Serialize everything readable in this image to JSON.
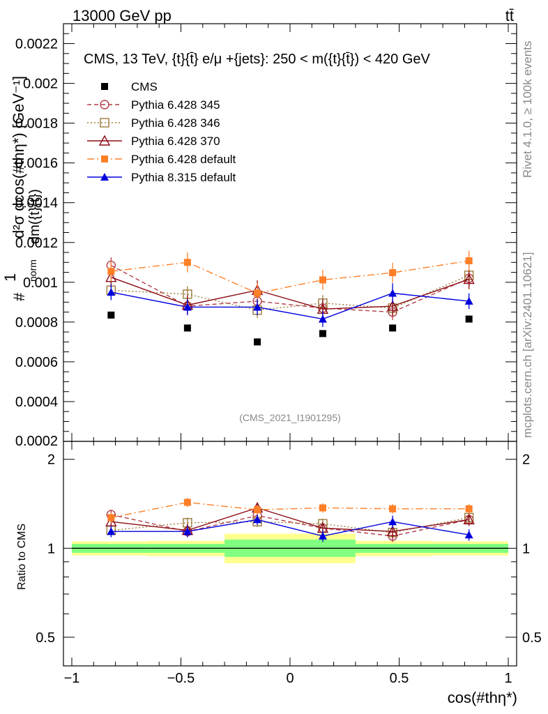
{
  "header": {
    "energy_label": "13000 GeV pp",
    "process_label": "tt̄"
  },
  "side_labels": {
    "rivet": "Rivet 4.1.0, ≥ 100k events",
    "mcplots": "mcplots.cern.ch [arXiv:2401.10621]"
  },
  "colors": {
    "cms": "#000000",
    "p345": "#b03a48",
    "p346": "#9c7b3a",
    "p370": "#8b0a14",
    "p6def": "#ff7f27",
    "p8def": "#0000dd",
    "band_inner": "#80ff80",
    "band_outer": "#ffff90"
  },
  "chart_data": [
    {
      "type": "line",
      "title": "CMS, 13 TeV, {t}{t̄} e/μ +{jets}: 250 < m({t}{t̄}) < 420 GeV",
      "watermark": "(CMS_2021_I1901295)",
      "ylabel": "#frac{1}{σ_norm} d²σ/dm({t}{t̄}) dcos(#thη*) [GeV⁻¹]",
      "ylabel_parts": {
        "frac_num": "1",
        "frac_den": "#",
        "sigma_sub": "norm",
        "main": "d²σ dcos(#thη*) [GeV⁻¹]",
        "denom": "dm({t}{t̄})"
      },
      "xlim": [
        -1.0,
        1.0
      ],
      "ylim": [
        0.0002,
        0.0023
      ],
      "yticks": [
        "0.0004",
        "0.0006",
        "0.0008",
        "0.001",
        "0.0012",
        "0.0014",
        "0.0016",
        "0.0018",
        "0.002",
        "0.0022"
      ],
      "ytick_values": [
        0.0004,
        0.0006,
        0.0008,
        0.001,
        0.0012,
        0.0014,
        0.0016,
        0.0018,
        0.002,
        0.0022
      ],
      "bottom_tick_label": "0.0002",
      "x": [
        -0.82,
        -0.47,
        -0.15,
        0.15,
        0.47,
        0.82
      ],
      "bin_edges": [
        -1.0,
        -0.65,
        -0.3,
        0.0,
        0.3,
        0.65,
        1.0
      ],
      "series": [
        {
          "name": "CMS",
          "key": "cms",
          "style": "data",
          "values": [
            0.000835,
            0.00077,
            0.0007,
            0.000742,
            0.00077,
            0.000815
          ],
          "errors": [
            0,
            0,
            0,
            0,
            0,
            0
          ]
        },
        {
          "name": "Pythia 6.428 345",
          "key": "p345",
          "style": "dashed",
          "marker": "open-circle",
          "values": [
            0.001085,
            0.00088,
            0.000905,
            0.00087,
            0.00085,
            0.00102
          ],
          "errors": [
            4e-05,
            4e-05,
            4e-05,
            4e-05,
            4e-05,
            4e-05
          ]
        },
        {
          "name": "Pythia 6.428 346",
          "key": "p346",
          "style": "dotted",
          "marker": "open-square",
          "values": [
            0.00096,
            0.00094,
            0.00086,
            0.000895,
            0.00087,
            0.001035
          ],
          "errors": [
            4e-05,
            4e-05,
            4e-05,
            4e-05,
            4e-05,
            4e-05
          ]
        },
        {
          "name": "Pythia 6.428 370",
          "key": "p370",
          "style": "solid",
          "marker": "open-triangle",
          "values": [
            0.001025,
            0.000885,
            0.00096,
            0.000865,
            0.00088,
            0.001015
          ],
          "errors": [
            5e-05,
            5e-05,
            5e-05,
            5e-05,
            5e-05,
            5e-05
          ]
        },
        {
          "name": "Pythia 6.428 default",
          "key": "p6def",
          "style": "dashdot",
          "marker": "filled-square",
          "values": [
            0.001055,
            0.0011,
            0.000945,
            0.001012,
            0.001048,
            0.001108
          ],
          "errors": [
            5e-05,
            5e-05,
            5e-05,
            5e-05,
            5e-05,
            5e-05
          ]
        },
        {
          "name": "Pythia 8.315 default",
          "key": "p8def",
          "style": "solid",
          "marker": "filled-triangle",
          "values": [
            0.00095,
            0.000875,
            0.000875,
            0.000815,
            0.000945,
            0.000905
          ],
          "errors": [
            4e-05,
            4e-05,
            4e-05,
            4e-05,
            5e-05,
            4e-05
          ]
        }
      ]
    },
    {
      "type": "line",
      "ylabel": "Ratio to CMS",
      "xlabel": "cos(#thη*)",
      "xlim": [
        -1.0,
        1.0
      ],
      "ylim": [
        0.4,
        2.3
      ],
      "yscale": "log",
      "yticks": [
        "0.5",
        "1",
        "2"
      ],
      "ytick_values": [
        0.5,
        1,
        2
      ],
      "xticks": [
        "−1",
        "−0.5",
        "0",
        "0.5",
        "1"
      ],
      "xtick_values": [
        -1,
        -0.5,
        0,
        0.5,
        1
      ],
      "x": [
        -0.82,
        -0.47,
        -0.15,
        0.15,
        0.47,
        0.82
      ],
      "bin_edges": [
        -1.0,
        -0.65,
        -0.3,
        0.0,
        0.3,
        0.65,
        1.0
      ],
      "band_inner": [
        [
          0.965,
          1.035
        ],
        [
          0.965,
          1.035
        ],
        [
          0.935,
          1.07
        ],
        [
          0.935,
          1.07
        ],
        [
          0.965,
          1.035
        ],
        [
          0.965,
          1.035
        ]
      ],
      "band_outer": [
        [
          0.945,
          1.055
        ],
        [
          0.94,
          1.06
        ],
        [
          0.89,
          1.12
        ],
        [
          0.89,
          1.12
        ],
        [
          0.94,
          1.06
        ],
        [
          0.945,
          1.055
        ]
      ],
      "series": [
        {
          "name": "Pythia 6.428 345",
          "key": "p345",
          "style": "dashed",
          "marker": "open-circle",
          "values": [
            1.3,
            1.14,
            1.29,
            1.17,
            1.1,
            1.25
          ],
          "errors": [
            0.05,
            0.05,
            0.05,
            0.05,
            0.05,
            0.05
          ]
        },
        {
          "name": "Pythia 6.428 346",
          "key": "p346",
          "style": "dotted",
          "marker": "open-square",
          "values": [
            1.15,
            1.22,
            1.23,
            1.21,
            1.13,
            1.27
          ],
          "errors": [
            0.05,
            0.05,
            0.05,
            0.05,
            0.05,
            0.05
          ]
        },
        {
          "name": "Pythia 6.428 370",
          "key": "p370",
          "style": "solid",
          "marker": "open-triangle",
          "values": [
            1.23,
            1.15,
            1.37,
            1.17,
            1.14,
            1.25
          ],
          "errors": [
            0.06,
            0.06,
            0.06,
            0.06,
            0.06,
            0.06
          ]
        },
        {
          "name": "Pythia 6.428 default",
          "key": "p6def",
          "style": "dashdot",
          "marker": "filled-square",
          "values": [
            1.27,
            1.43,
            1.35,
            1.37,
            1.36,
            1.36
          ],
          "errors": [
            0.05,
            0.05,
            0.05,
            0.05,
            0.05,
            0.05
          ]
        },
        {
          "name": "Pythia 8.315 default",
          "key": "p8def",
          "style": "solid",
          "marker": "filled-triangle",
          "values": [
            1.14,
            1.14,
            1.25,
            1.1,
            1.23,
            1.11
          ],
          "errors": [
            0.05,
            0.05,
            0.05,
            0.05,
            0.06,
            0.05
          ]
        }
      ]
    }
  ]
}
